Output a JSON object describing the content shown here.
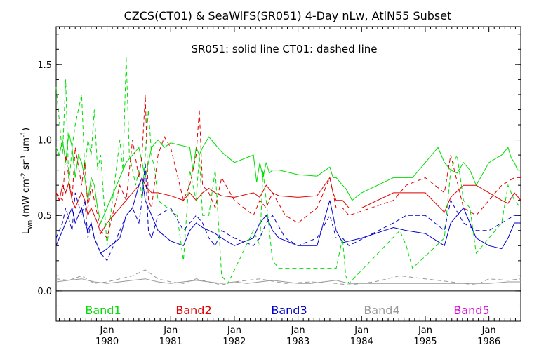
{
  "chart_data": {
    "type": "line",
    "title": "CZCS(CT01) & SeaWiFS(SR051) 4-Day nLw, AtlN55 Subset",
    "subtitle": "SR051: solid line   CT01: dashed line",
    "ylabel_main": "L",
    "ylabel_sub": "wn",
    "ylabel_units": "(mW cm",
    "ylabel_exp1": "-2",
    "ylabel_mid": " sr",
    "ylabel_exp2": "-1",
    "ylabel_end": " um",
    "ylabel_exp3": "-1",
    "ylabel_close": ")",
    "ylim": [
      -0.2,
      1.75
    ],
    "xlim": [
      1979.2,
      1986.5
    ],
    "y_ticks": [
      "0.0",
      "0.5",
      "1.0",
      "1.5"
    ],
    "y_tick_values": [
      0.0,
      0.5,
      1.0,
      1.5
    ],
    "x_ticks": [
      {
        "month": "Jan",
        "year": "1980",
        "x": 1980.0
      },
      {
        "month": "Jan",
        "year": "1981",
        "x": 1981.0
      },
      {
        "month": "Jan",
        "year": "1982",
        "x": 1982.0
      },
      {
        "month": "Jan",
        "year": "1983",
        "x": 1983.0
      },
      {
        "month": "Jan",
        "year": "1984",
        "x": 1984.0
      },
      {
        "month": "Jan",
        "year": "1985",
        "x": 1985.0
      },
      {
        "month": "Jan",
        "year": "1986",
        "x": 1986.0
      }
    ],
    "zero_line": 0.0,
    "legend": [
      "Band1",
      "Band2",
      "Band3",
      "Band4",
      "Band5"
    ],
    "colors": {
      "Band1": "#00dd00",
      "Band2": "#dd0000",
      "Band3": "#0000cc",
      "Band4": "#999999",
      "Band5": "#dd00dd"
    },
    "series": [
      {
        "band": "Band1",
        "style": "solid",
        "x": [
          1979.2,
          1979.25,
          1979.3,
          1979.35,
          1979.4,
          1979.45,
          1979.5,
          1979.55,
          1979.6,
          1979.65,
          1979.7,
          1979.75,
          1979.8,
          1979.85,
          1979.9,
          1980.0,
          1980.2,
          1980.3,
          1980.4,
          1980.5,
          1980.55,
          1980.6,
          1980.7,
          1980.8,
          1980.9,
          1981.0,
          1981.3,
          1981.35,
          1981.4,
          1981.45,
          1981.5,
          1981.6,
          1981.7,
          1981.8,
          1982.0,
          1982.3,
          1982.35,
          1982.4,
          1982.45,
          1982.5,
          1982.55,
          1982.6,
          1982.7,
          1983.0,
          1983.3,
          1983.5,
          1983.55,
          1983.6,
          1983.7,
          1983.75,
          1983.85,
          1984.0,
          1984.5,
          1984.6,
          1984.8,
          1985.2,
          1985.3,
          1985.4,
          1985.5,
          1985.6,
          1985.7,
          1985.8,
          1986.0,
          1986.2,
          1986.3,
          1986.35,
          1986.4,
          1986.45,
          1986.5
        ],
        "y": [
          0.95,
          0.9,
          1.0,
          0.85,
          1.05,
          0.95,
          0.75,
          0.9,
          0.85,
          0.75,
          0.6,
          0.75,
          0.7,
          0.55,
          0.45,
          0.55,
          0.75,
          0.85,
          0.9,
          0.95,
          0.85,
          0.75,
          0.95,
          1.0,
          0.95,
          0.98,
          0.95,
          0.8,
          0.95,
          0.9,
          0.95,
          1.02,
          0.97,
          0.92,
          0.85,
          0.9,
          0.72,
          0.85,
          0.75,
          0.85,
          0.78,
          0.8,
          0.8,
          0.77,
          0.76,
          0.82,
          0.75,
          0.75,
          0.7,
          0.68,
          0.6,
          0.65,
          0.75,
          0.75,
          0.75,
          0.95,
          0.85,
          0.8,
          0.78,
          0.85,
          0.8,
          0.7,
          0.85,
          0.9,
          0.95,
          0.88,
          0.85,
          0.8,
          0.8
        ]
      },
      {
        "band": "Band2",
        "style": "solid",
        "x": [
          1979.2,
          1979.25,
          1979.3,
          1979.35,
          1979.4,
          1979.45,
          1979.5,
          1979.55,
          1979.6,
          1979.65,
          1979.7,
          1979.75,
          1979.8,
          1979.85,
          1979.9,
          1980.0,
          1980.2,
          1980.3,
          1980.4,
          1980.5,
          1980.55,
          1980.6,
          1980.7,
          1980.8,
          1981.0,
          1981.2,
          1981.3,
          1981.4,
          1981.5,
          1981.6,
          1981.7,
          1981.8,
          1982.0,
          1982.3,
          1982.4,
          1982.5,
          1982.6,
          1982.7,
          1983.0,
          1983.3,
          1983.5,
          1983.55,
          1983.6,
          1983.7,
          1983.8,
          1984.0,
          1984.5,
          1984.7,
          1985.0,
          1985.3,
          1985.4,
          1985.6,
          1985.8,
          1986.0,
          1986.2,
          1986.3,
          1986.4,
          1986.5
        ],
        "y": [
          0.65,
          0.6,
          0.7,
          0.65,
          0.72,
          0.6,
          0.55,
          0.6,
          0.65,
          0.6,
          0.5,
          0.55,
          0.5,
          0.45,
          0.38,
          0.45,
          0.55,
          0.6,
          0.65,
          0.7,
          0.75,
          0.7,
          0.65,
          0.65,
          0.63,
          0.6,
          0.65,
          0.6,
          0.65,
          0.68,
          0.65,
          0.63,
          0.62,
          0.65,
          0.62,
          0.7,
          0.65,
          0.63,
          0.62,
          0.63,
          0.75,
          0.65,
          0.6,
          0.6,
          0.55,
          0.55,
          0.65,
          0.65,
          0.65,
          0.52,
          0.62,
          0.7,
          0.7,
          0.65,
          0.6,
          0.58,
          0.65,
          0.6
        ]
      },
      {
        "band": "Band3",
        "style": "solid",
        "x": [
          1979.2,
          1979.25,
          1979.3,
          1979.35,
          1979.4,
          1979.45,
          1979.5,
          1979.55,
          1979.6,
          1979.65,
          1979.7,
          1979.75,
          1979.8,
          1979.85,
          1979.9,
          1980.0,
          1980.2,
          1980.3,
          1980.4,
          1980.5,
          1980.55,
          1980.6,
          1980.7,
          1980.8,
          1981.0,
          1981.2,
          1981.3,
          1981.4,
          1981.5,
          1981.6,
          1981.7,
          1981.8,
          1982.0,
          1982.3,
          1982.4,
          1982.5,
          1982.6,
          1982.7,
          1983.0,
          1983.3,
          1983.5,
          1983.55,
          1983.6,
          1983.7,
          1983.8,
          1984.0,
          1984.5,
          1984.7,
          1985.0,
          1985.3,
          1985.4,
          1985.6,
          1985.8,
          1986.0,
          1986.2,
          1986.3,
          1986.4,
          1986.5
        ],
        "y": [
          0.3,
          0.35,
          0.4,
          0.45,
          0.5,
          0.55,
          0.45,
          0.5,
          0.55,
          0.45,
          0.4,
          0.45,
          0.35,
          0.3,
          0.25,
          0.28,
          0.35,
          0.5,
          0.55,
          0.7,
          0.75,
          0.6,
          0.5,
          0.4,
          0.33,
          0.3,
          0.4,
          0.45,
          0.42,
          0.4,
          0.38,
          0.35,
          0.3,
          0.35,
          0.45,
          0.5,
          0.4,
          0.35,
          0.3,
          0.3,
          0.6,
          0.5,
          0.4,
          0.32,
          0.33,
          0.35,
          0.42,
          0.4,
          0.38,
          0.3,
          0.45,
          0.55,
          0.35,
          0.3,
          0.28,
          0.35,
          0.45,
          0.45
        ]
      },
      {
        "band": "Band4",
        "style": "solid",
        "x": [
          1979.2,
          1979.4,
          1979.6,
          1979.8,
          1980.0,
          1980.2,
          1980.4,
          1980.6,
          1980.8,
          1981.0,
          1981.2,
          1981.4,
          1981.6,
          1981.8,
          1982.0,
          1982.2,
          1982.4,
          1982.6,
          1982.8,
          1983.0,
          1983.2,
          1983.4,
          1983.6,
          1983.8,
          1984.0,
          1984.4,
          1984.8,
          1985.2,
          1985.6,
          1986.0,
          1986.3,
          1986.5
        ],
        "y": [
          0.06,
          0.07,
          0.08,
          0.06,
          0.05,
          0.06,
          0.07,
          0.08,
          0.06,
          0.05,
          0.06,
          0.07,
          0.06,
          0.05,
          0.06,
          0.05,
          0.06,
          0.07,
          0.06,
          0.05,
          0.05,
          0.06,
          0.07,
          0.05,
          0.05,
          0.05,
          0.05,
          0.05,
          0.05,
          0.05,
          0.06,
          0.06
        ]
      },
      {
        "band": "Band1",
        "style": "dashed",
        "x": [
          1979.2,
          1979.3,
          1979.35,
          1979.4,
          1979.45,
          1979.5,
          1979.6,
          1979.65,
          1979.7,
          1979.75,
          1979.8,
          1979.85,
          1979.9,
          1980.0,
          1980.2,
          1980.25,
          1980.3,
          1980.35,
          1980.45,
          1980.5,
          1980.55,
          1980.6,
          1980.65,
          1980.7,
          1980.75,
          1980.8,
          1981.1,
          1981.2,
          1981.3,
          1981.4,
          1981.45,
          1981.5,
          1981.6,
          1981.7,
          1981.8,
          1981.9,
          1982.3,
          1982.4,
          1982.45,
          1982.5,
          1982.6,
          1982.7,
          1983.6,
          1983.7,
          1983.75,
          1983.8,
          1984.6,
          1984.7,
          1984.8,
          1985.3,
          1985.4,
          1985.5,
          1985.6,
          1985.7,
          1985.8,
          1986.2,
          1986.3,
          1986.4,
          1986.5
        ],
        "y": [
          1.35,
          0.9,
          1.4,
          0.7,
          0.95,
          1.1,
          1.3,
          0.8,
          1.0,
          0.9,
          1.2,
          0.8,
          0.9,
          0.3,
          1.0,
          0.8,
          1.55,
          0.9,
          0.7,
          0.8,
          0.6,
          0.9,
          1.2,
          0.9,
          0.8,
          0.6,
          0.5,
          0.2,
          0.8,
          0.6,
          0.9,
          0.5,
          0.5,
          0.8,
          0.1,
          0.05,
          0.4,
          0.3,
          0.8,
          0.6,
          0.2,
          0.15,
          0.15,
          0.35,
          0.1,
          0.05,
          0.4,
          0.3,
          0.15,
          0.35,
          0.8,
          0.9,
          0.6,
          0.55,
          0.25,
          0.45,
          0.7,
          0.6,
          0.55
        ]
      },
      {
        "band": "Band2",
        "style": "dashed",
        "x": [
          1979.2,
          1979.3,
          1979.35,
          1979.45,
          1979.5,
          1979.6,
          1979.65,
          1979.7,
          1979.75,
          1979.8,
          1979.9,
          1980.0,
          1980.2,
          1980.3,
          1980.4,
          1980.5,
          1980.55,
          1980.6,
          1980.65,
          1980.7,
          1980.8,
          1980.9,
          1981.0,
          1981.2,
          1981.3,
          1981.4,
          1981.45,
          1981.5,
          1981.6,
          1981.7,
          1981.8,
          1982.0,
          1982.3,
          1982.4,
          1982.5,
          1982.6,
          1982.8,
          1983.0,
          1983.3,
          1983.5,
          1983.6,
          1983.7,
          1983.8,
          1984.5,
          1984.7,
          1985.0,
          1985.3,
          1985.4,
          1985.6,
          1985.8,
          1986.0,
          1986.2,
          1986.4,
          1986.5
        ],
        "y": [
          0.65,
          0.6,
          0.9,
          0.6,
          0.95,
          0.7,
          0.85,
          0.55,
          0.7,
          0.6,
          0.4,
          0.35,
          0.7,
          0.6,
          1.0,
          0.75,
          0.9,
          1.3,
          0.6,
          0.55,
          0.9,
          1.02,
          0.95,
          0.6,
          0.7,
          0.9,
          1.2,
          0.7,
          0.65,
          0.55,
          0.75,
          0.6,
          0.5,
          0.6,
          0.55,
          0.65,
          0.5,
          0.45,
          0.55,
          0.75,
          0.55,
          0.55,
          0.5,
          0.6,
          0.7,
          0.75,
          0.65,
          0.9,
          0.55,
          0.5,
          0.6,
          0.7,
          0.75,
          0.75
        ]
      },
      {
        "band": "Band3",
        "style": "dashed",
        "x": [
          1979.2,
          1979.3,
          1979.35,
          1979.45,
          1979.5,
          1979.6,
          1979.65,
          1979.7,
          1979.75,
          1979.8,
          1979.9,
          1980.0,
          1980.2,
          1980.3,
          1980.4,
          1980.5,
          1980.55,
          1980.6,
          1980.65,
          1980.7,
          1980.8,
          1981.0,
          1981.2,
          1981.3,
          1981.4,
          1981.5,
          1981.6,
          1981.7,
          1981.8,
          1982.0,
          1982.3,
          1982.4,
          1982.5,
          1982.6,
          1982.8,
          1983.0,
          1983.3,
          1983.5,
          1983.6,
          1983.7,
          1983.8,
          1984.5,
          1984.7,
          1985.0,
          1985.3,
          1985.4,
          1985.6,
          1985.8,
          1986.0,
          1986.2,
          1986.4,
          1986.5
        ],
        "y": [
          0.35,
          0.45,
          0.55,
          0.4,
          0.65,
          0.5,
          0.6,
          0.35,
          0.45,
          0.35,
          0.25,
          0.2,
          0.4,
          0.5,
          0.55,
          0.45,
          0.6,
          0.85,
          0.4,
          0.35,
          0.5,
          0.55,
          0.4,
          0.45,
          0.5,
          0.45,
          0.35,
          0.3,
          0.4,
          0.35,
          0.3,
          0.35,
          0.45,
          0.5,
          0.35,
          0.3,
          0.35,
          0.5,
          0.35,
          0.35,
          0.3,
          0.45,
          0.5,
          0.5,
          0.4,
          0.6,
          0.45,
          0.4,
          0.4,
          0.45,
          0.5,
          0.5
        ]
      },
      {
        "band": "Band4",
        "style": "dashed",
        "x": [
          1979.2,
          1979.4,
          1979.6,
          1979.8,
          1980.0,
          1980.2,
          1980.4,
          1980.6,
          1980.8,
          1981.0,
          1981.2,
          1981.4,
          1981.6,
          1981.8,
          1982.0,
          1982.4,
          1982.8,
          1983.2,
          1983.6,
          1983.8,
          1984.2,
          1984.6,
          1985.0,
          1985.4,
          1985.8,
          1986.0,
          1986.3,
          1986.5
        ],
        "y": [
          0.08,
          0.07,
          0.1,
          0.05,
          0.06,
          0.08,
          0.1,
          0.14,
          0.08,
          0.06,
          0.05,
          0.08,
          0.06,
          0.04,
          0.06,
          0.08,
          0.05,
          0.06,
          0.05,
          0.04,
          0.06,
          0.1,
          0.08,
          0.06,
          0.04,
          0.08,
          0.07,
          0.08
        ]
      }
    ]
  }
}
